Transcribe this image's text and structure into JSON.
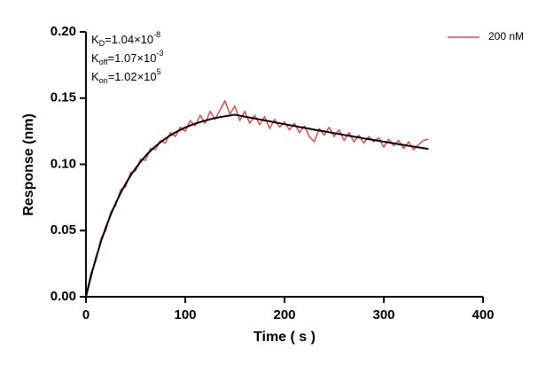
{
  "chart_data": {
    "type": "line",
    "x_label": "Time ( s )",
    "y_label": "Response (nm)",
    "xlim": [
      0,
      400
    ],
    "xticks": [
      0,
      100,
      200,
      300,
      400
    ],
    "ylim": [
      0,
      0.2
    ],
    "yticks": [
      {
        "value": 0,
        "label": "0.00"
      },
      {
        "value": 0.05,
        "label": "0.05"
      },
      {
        "value": 0.1,
        "label": "0.10"
      },
      {
        "value": 0.15,
        "label": "0.15"
      },
      {
        "value": 0.2,
        "label": "0.20"
      }
    ],
    "legend_position": "top-right",
    "annotations": [
      {
        "symbol": "K",
        "sub": "D",
        "text": "=1.04×10",
        "sup": "-8"
      },
      {
        "symbol": "K",
        "sub": "off",
        "text": "=1.07×10",
        "sup": "-3"
      },
      {
        "symbol": "K",
        "sub": "on",
        "text": "=1.02×10",
        "sup": "5"
      }
    ],
    "x": [
      0,
      5,
      10,
      15,
      20,
      25,
      30,
      35,
      40,
      45,
      50,
      55,
      60,
      65,
      70,
      75,
      80,
      85,
      90,
      95,
      100,
      105,
      110,
      115,
      120,
      125,
      130,
      135,
      140,
      145,
      150,
      155,
      160,
      165,
      170,
      175,
      180,
      185,
      190,
      195,
      200,
      205,
      210,
      215,
      220,
      225,
      230,
      235,
      240,
      245,
      250,
      255,
      260,
      265,
      270,
      275,
      280,
      285,
      290,
      295,
      300,
      305,
      310,
      315,
      320,
      325,
      330,
      335,
      340,
      345
    ],
    "series": [
      {
        "name": "200 nM",
        "color": "#e04a4a",
        "values": [
          0.0,
          0.018,
          0.027,
          0.044,
          0.05,
          0.064,
          0.069,
          0.081,
          0.083,
          0.094,
          0.095,
          0.104,
          0.103,
          0.112,
          0.111,
          0.118,
          0.116,
          0.124,
          0.121,
          0.128,
          0.125,
          0.133,
          0.129,
          0.137,
          0.131,
          0.14,
          0.134,
          0.141,
          0.148,
          0.138,
          0.144,
          0.133,
          0.14,
          0.131,
          0.137,
          0.13,
          0.136,
          0.127,
          0.134,
          0.128,
          0.132,
          0.126,
          0.131,
          0.124,
          0.129,
          0.121,
          0.117,
          0.127,
          0.122,
          0.128,
          0.121,
          0.126,
          0.118,
          0.124,
          0.117,
          0.122,
          0.116,
          0.121,
          0.117,
          0.12,
          0.113,
          0.119,
          0.114,
          0.118,
          0.112,
          0.117,
          0.111,
          0.115,
          0.118,
          0.119
        ]
      }
    ],
    "fit": {
      "color": "#000000",
      "values": [
        0,
        0.0154,
        0.0292,
        0.0414,
        0.0524,
        0.0621,
        0.0708,
        0.0785,
        0.0854,
        0.0916,
        0.097,
        0.1019,
        0.1063,
        0.1102,
        0.1136,
        0.1167,
        0.1194,
        0.1219,
        0.1241,
        0.126,
        0.1278,
        0.1293,
        0.1307,
        0.1319,
        0.133,
        0.134,
        0.1349,
        0.1356,
        0.1363,
        0.1369,
        0.1375,
        0.1368,
        0.136,
        0.1353,
        0.1346,
        0.1339,
        0.1332,
        0.1325,
        0.1317,
        0.131,
        0.1303,
        0.1296,
        0.1289,
        0.1282,
        0.1276,
        0.1269,
        0.1262,
        0.1255,
        0.1249,
        0.1242,
        0.1235,
        0.1229,
        0.1222,
        0.1216,
        0.1209,
        0.1203,
        0.1196,
        0.119,
        0.1184,
        0.1177,
        0.1171,
        0.1165,
        0.1159,
        0.1152,
        0.1146,
        0.114,
        0.1134,
        0.1128,
        0.1122,
        0.1116
      ]
    }
  }
}
